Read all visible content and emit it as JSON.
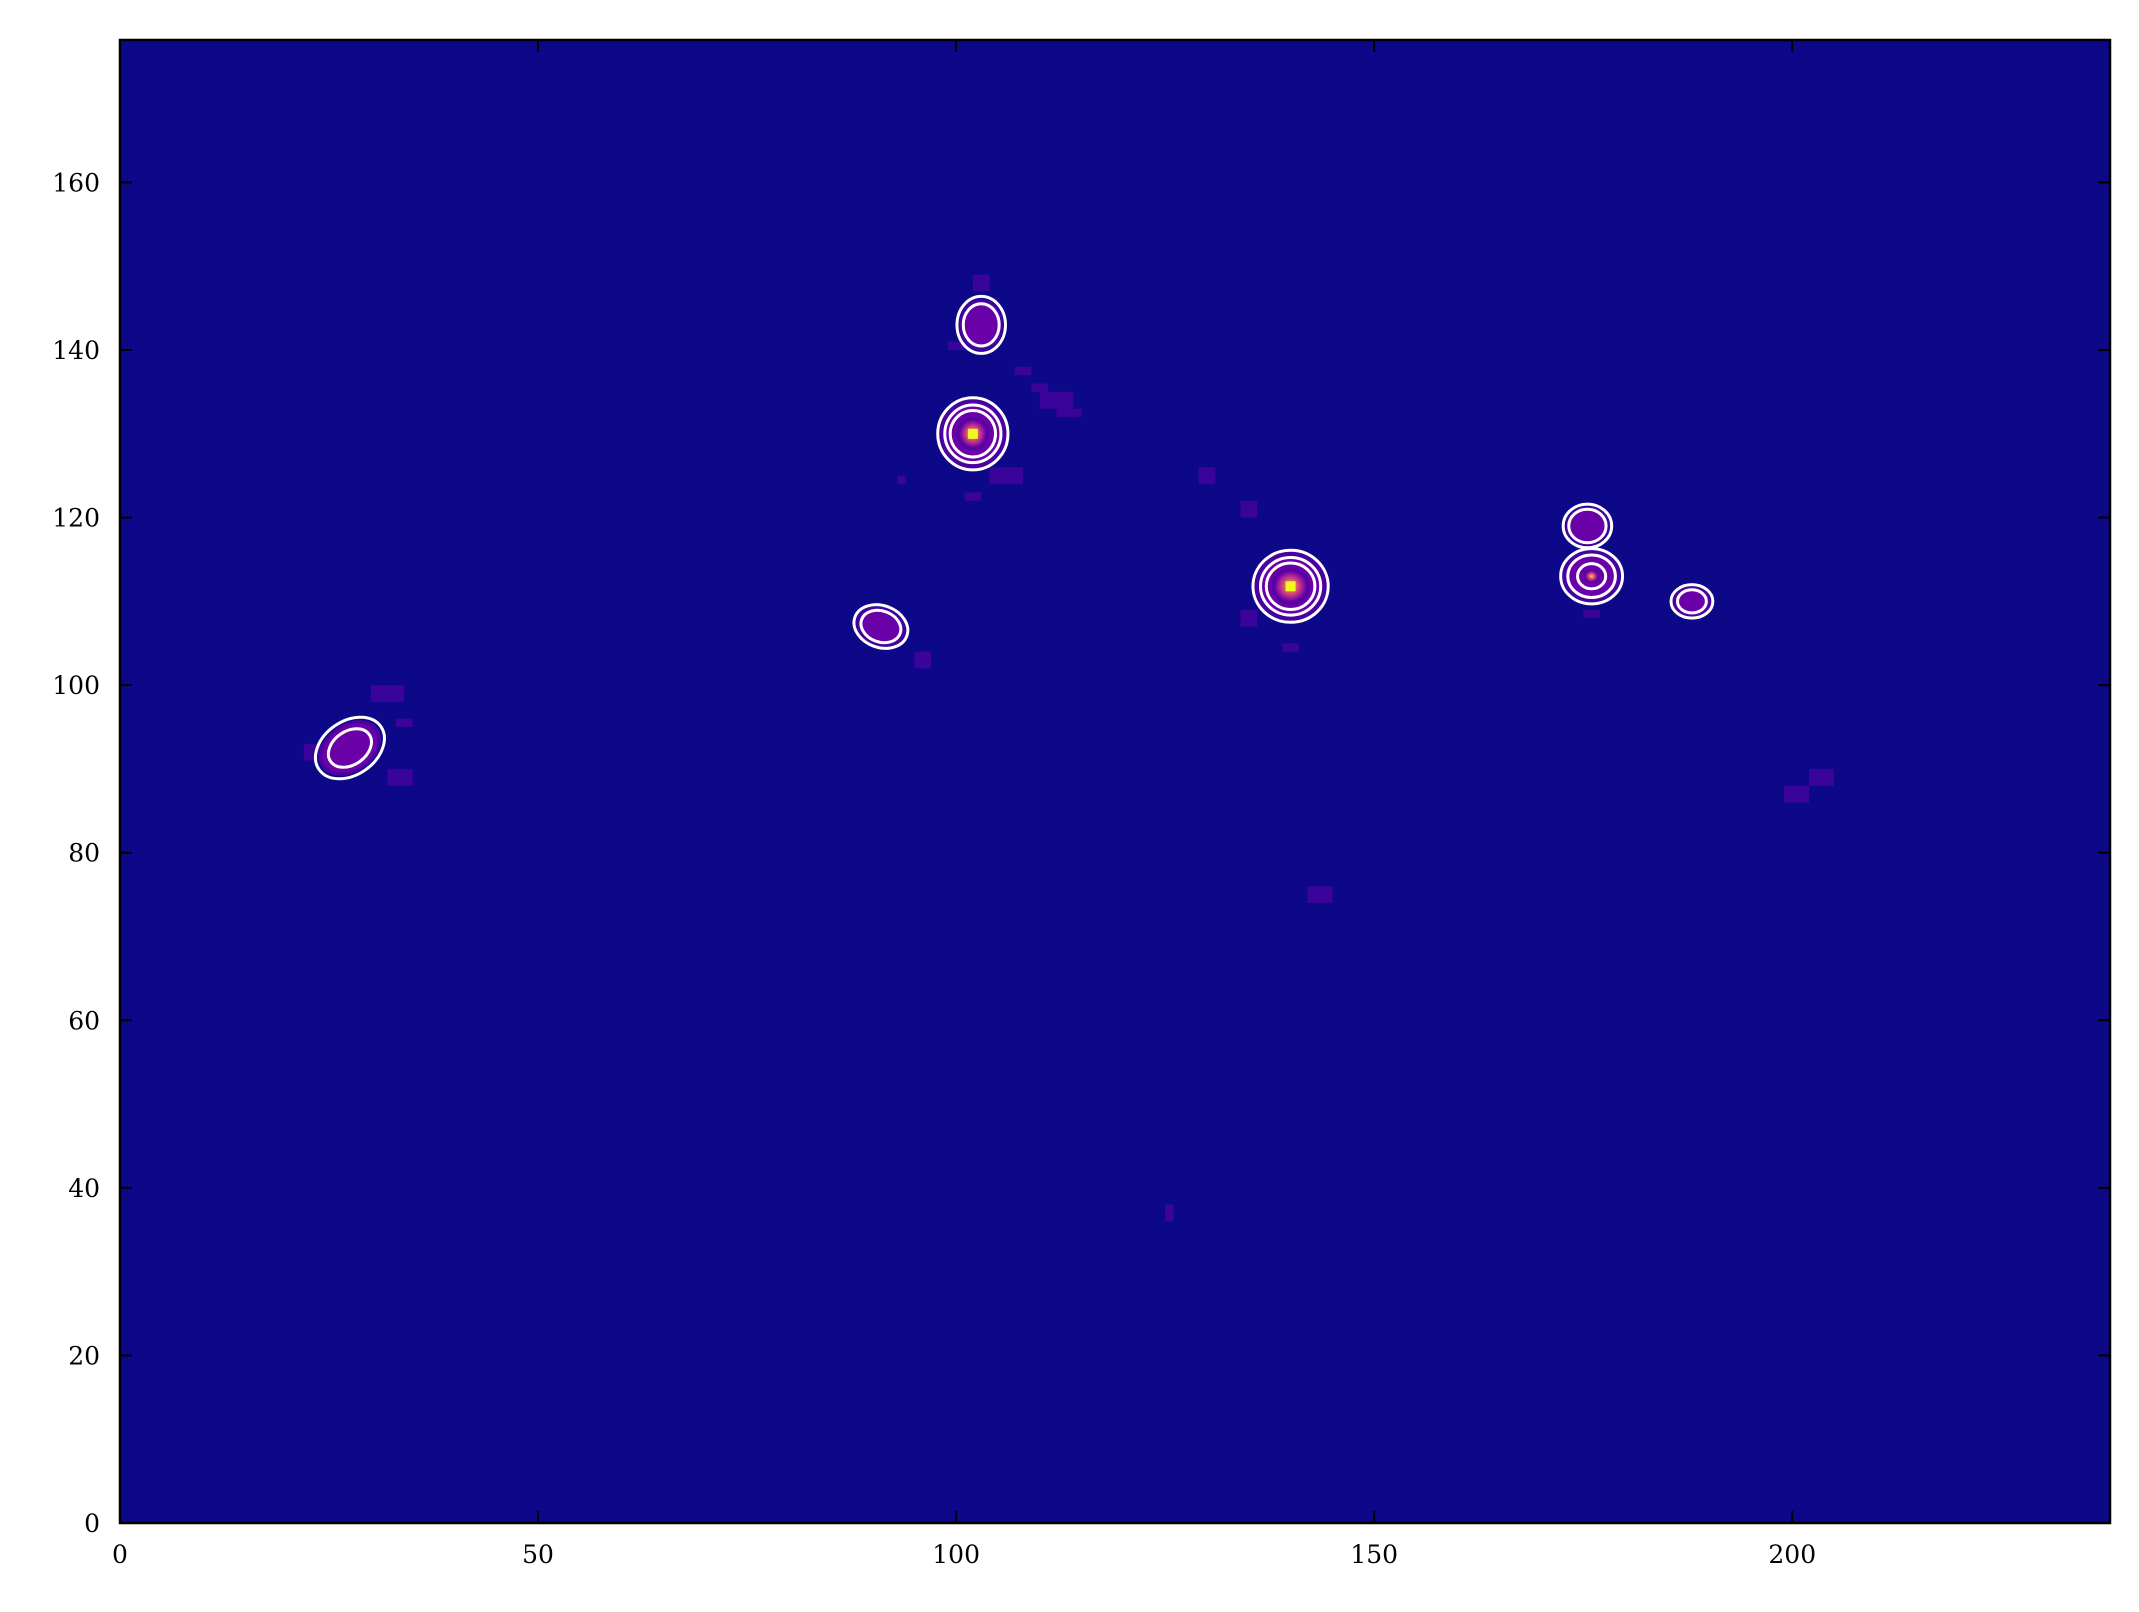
{
  "chart_data": {
    "type": "heatmap",
    "title": "",
    "xlabel": "",
    "ylabel": "",
    "xlim": [
      0,
      238
    ],
    "ylim": [
      0,
      177
    ],
    "x_ticks": [
      0,
      50,
      100,
      150,
      200
    ],
    "y_ticks": [
      0,
      20,
      40,
      60,
      80,
      100,
      120,
      140,
      160
    ],
    "x_tick_labels": [
      "0",
      "50",
      "100",
      "150",
      "200"
    ],
    "y_tick_labels": [
      "0",
      "20",
      "40",
      "60",
      "80",
      "100",
      "120",
      "140",
      "160"
    ],
    "colormap": "plasma",
    "background_color": "#0d0887",
    "contour_color": "#ffffff",
    "grid": false,
    "sources": [
      {
        "x": 27.5,
        "y": 92.5,
        "peak": 0.28,
        "rx": 4.5,
        "ry": 3.2,
        "angle": 35,
        "levels": [
          1,
          1.6
        ]
      },
      {
        "x": 91.0,
        "y": 107.0,
        "peak": 0.35,
        "rx": 3.3,
        "ry": 2.5,
        "angle": -20,
        "levels": [
          1,
          1.35
        ]
      },
      {
        "x": 103.0,
        "y": 143.0,
        "peak": 0.3,
        "rx": 2.9,
        "ry": 3.4,
        "angle": 0,
        "levels": [
          1,
          1.35
        ]
      },
      {
        "x": 102.0,
        "y": 130.0,
        "peak": 0.85,
        "rx": 4.2,
        "ry": 4.3,
        "angle": 0,
        "levels": [
          1,
          1.25,
          1.55
        ]
      },
      {
        "x": 140.0,
        "y": 111.8,
        "peak": 0.95,
        "rx": 4.5,
        "ry": 4.3,
        "angle": 0,
        "levels": [
          1,
          1.25,
          1.55
        ]
      },
      {
        "x": 175.5,
        "y": 119.0,
        "peak": 0.3,
        "rx": 2.9,
        "ry": 2.6,
        "angle": 0,
        "levels": [
          1,
          1.3
        ]
      },
      {
        "x": 176.0,
        "y": 113.0,
        "peak": 0.45,
        "rx": 3.7,
        "ry": 3.3,
        "angle": 0,
        "levels": [
          1,
          1.3,
          2.2
        ]
      },
      {
        "x": 188.0,
        "y": 110.0,
        "peak": 0.3,
        "rx": 2.5,
        "ry": 2.0,
        "angle": 0,
        "levels": [
          1,
          1.45
        ]
      }
    ],
    "faint_patches": [
      {
        "x": 22,
        "y": 91,
        "w": 3,
        "h": 2
      },
      {
        "x": 30,
        "y": 98,
        "w": 4,
        "h": 2
      },
      {
        "x": 33,
        "y": 95,
        "w": 2,
        "h": 1
      },
      {
        "x": 32,
        "y": 88,
        "w": 3,
        "h": 2
      },
      {
        "x": 95,
        "y": 102,
        "w": 2,
        "h": 2
      },
      {
        "x": 102,
        "y": 147,
        "w": 2,
        "h": 2
      },
      {
        "x": 99,
        "y": 140,
        "w": 2,
        "h": 1
      },
      {
        "x": 107,
        "y": 137,
        "w": 2,
        "h": 1
      },
      {
        "x": 109,
        "y": 135,
        "w": 2,
        "h": 1
      },
      {
        "x": 110,
        "y": 133,
        "w": 4,
        "h": 2
      },
      {
        "x": 112,
        "y": 132,
        "w": 3,
        "h": 1
      },
      {
        "x": 101,
        "y": 122,
        "w": 2,
        "h": 1
      },
      {
        "x": 104,
        "y": 124,
        "w": 4,
        "h": 2
      },
      {
        "x": 93,
        "y": 124,
        "w": 1,
        "h": 1
      },
      {
        "x": 129,
        "y": 124,
        "w": 2,
        "h": 2
      },
      {
        "x": 134,
        "y": 120,
        "w": 2,
        "h": 2
      },
      {
        "x": 134,
        "y": 107,
        "w": 2,
        "h": 2
      },
      {
        "x": 139,
        "y": 104,
        "w": 2,
        "h": 1
      },
      {
        "x": 142,
        "y": 74,
        "w": 3,
        "h": 2
      },
      {
        "x": 125,
        "y": 36,
        "w": 1,
        "h": 2
      },
      {
        "x": 199,
        "y": 86,
        "w": 3,
        "h": 2
      },
      {
        "x": 202,
        "y": 88,
        "w": 3,
        "h": 2
      },
      {
        "x": 175,
        "y": 108,
        "w": 2,
        "h": 1
      }
    ]
  }
}
